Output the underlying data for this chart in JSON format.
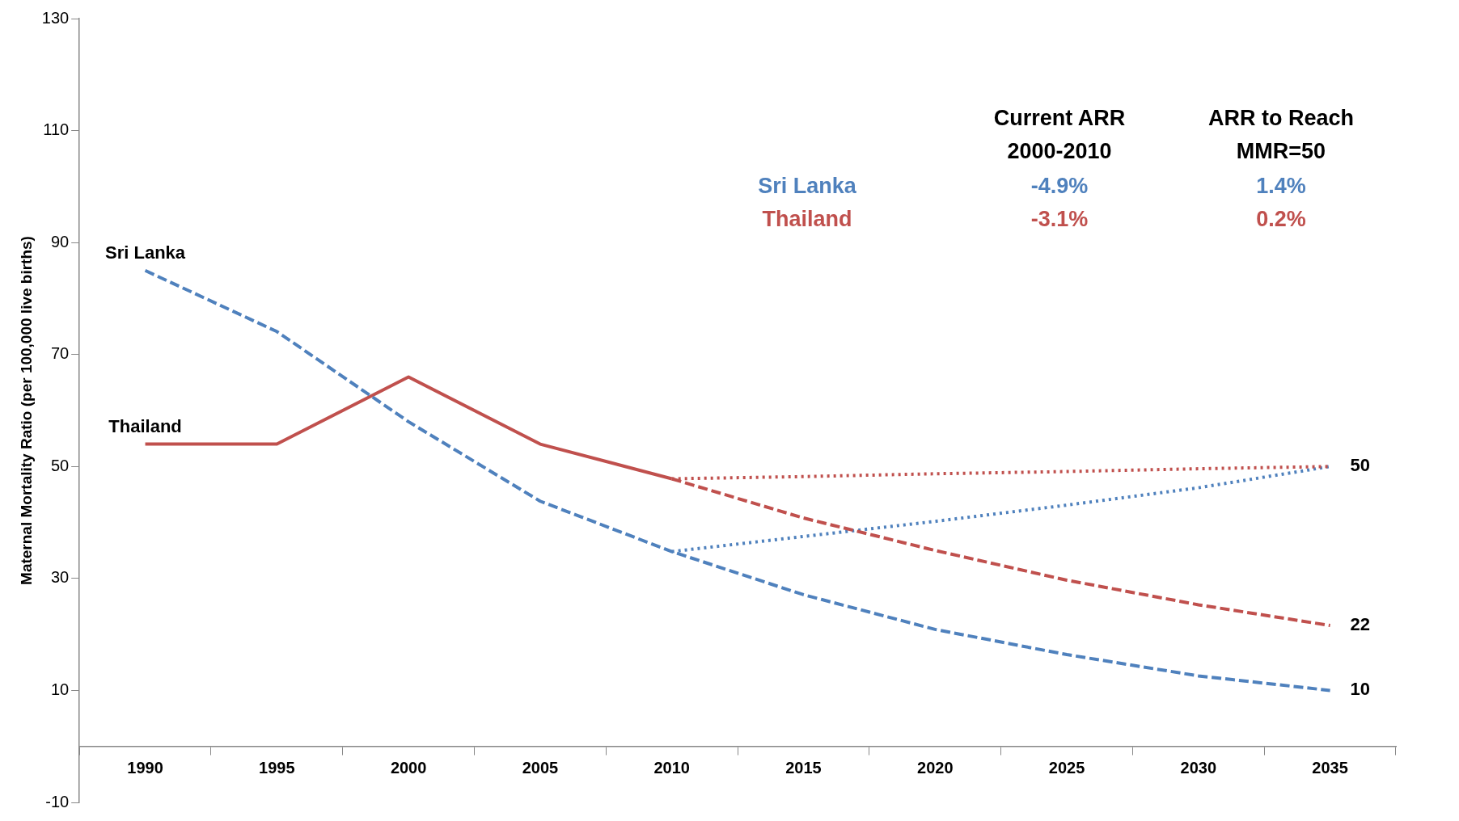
{
  "chart_data": {
    "type": "line",
    "ylabel": "Maternal Mortality Ratio (per 100,000 live births)",
    "categories": [
      "1990",
      "1995",
      "2000",
      "2005",
      "2010",
      "2015",
      "2020",
      "2025",
      "2030",
      "2035"
    ],
    "ylim": [
      -10,
      130
    ],
    "yticks": [
      -10,
      10,
      30,
      50,
      70,
      90,
      110,
      130
    ],
    "grid": false,
    "legend": false,
    "marker": "none",
    "series": [
      {
        "name": "Sri Lanka",
        "color": "#4f81bd",
        "line_style": "dashed",
        "values": [
          85,
          74.1,
          58,
          43.8,
          34.8,
          27.1,
          20.9,
          16.4,
          12.6,
          10
        ]
      },
      {
        "name": "Thailand",
        "color": "#c0504d",
        "line_style": "solid",
        "values": [
          54,
          54,
          66,
          54,
          47.8,
          null,
          null,
          null,
          null,
          null
        ]
      },
      {
        "color": "#c0504d",
        "line_style": "dashed",
        "values": [
          null,
          null,
          null,
          null,
          47.8,
          40.8,
          35,
          29.7,
          25.3,
          21.6
        ]
      },
      {
        "color": "#c0504d",
        "line_style": "dotted",
        "values": [
          null,
          null,
          null,
          null,
          47.8,
          48.2,
          48.7,
          49.1,
          49.6,
          50
        ]
      },
      {
        "color": "#4f81bd",
        "line_style": "dotted",
        "values": [
          null,
          null,
          null,
          null,
          34.8,
          37.5,
          40.2,
          43.1,
          46.2,
          50
        ]
      }
    ],
    "annotations": [
      "Current ARR\n2000-2010",
      "ARR to Reach\nMMR=50",
      "-4.9%",
      "1.4%",
      "-3.1%",
      "0.2%",
      {
        "text": "50",
        "x": "2035",
        "y": 50
      },
      {
        "text": "22",
        "x": "2035",
        "y": 21.6
      },
      {
        "text": "10",
        "x": "2035",
        "y": 10
      }
    ]
  }
}
